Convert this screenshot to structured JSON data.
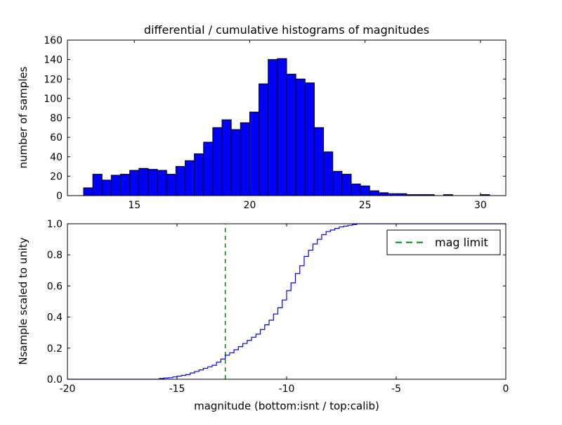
{
  "figure": {
    "background": "#ffffff",
    "frame_color": "#000000"
  },
  "chart_data": [
    {
      "id": "differential-histogram",
      "type": "bar",
      "title": "differential / cumulative histograms of magnitudes",
      "ylabel": "number of samples",
      "bar_color": "#0000ff",
      "bar_edge_color": "#000000",
      "bin_start": 12.8,
      "bin_width": 0.4,
      "counts": [
        8,
        22,
        16,
        21,
        22,
        26,
        28,
        27,
        26,
        22,
        30,
        36,
        43,
        55,
        70,
        78,
        68,
        75,
        86,
        115,
        140,
        141,
        125,
        120,
        116,
        70,
        45,
        25,
        22,
        12,
        10,
        5,
        3,
        2,
        2,
        1,
        1,
        1,
        0,
        1,
        0,
        0,
        0,
        1
      ],
      "xlim": [
        12.1,
        31.1
      ],
      "ylim": [
        0,
        160
      ],
      "xticks": [
        15,
        20,
        25,
        30
      ],
      "yticks": [
        0,
        20,
        40,
        60,
        80,
        100,
        120,
        140,
        160
      ],
      "grid": false
    },
    {
      "id": "cumulative-histogram",
      "type": "line",
      "style": "step",
      "ylabel": "Nsample scaled to unity",
      "xlabel": "magnitude (bottom:isnt / top:calib)",
      "line_color": "#0000ff",
      "x": [
        -16.0,
        -15.8,
        -15.6,
        -15.4,
        -15.2,
        -15.0,
        -14.8,
        -14.6,
        -14.4,
        -14.2,
        -14.0,
        -13.8,
        -13.6,
        -13.4,
        -13.2,
        -13.0,
        -12.8,
        -12.6,
        -12.4,
        -12.2,
        -12.0,
        -11.8,
        -11.6,
        -11.4,
        -11.2,
        -11.0,
        -10.8,
        -10.6,
        -10.4,
        -10.2,
        -10.0,
        -9.8,
        -9.6,
        -9.4,
        -9.2,
        -9.0,
        -8.8,
        -8.6,
        -8.4,
        -8.2,
        -8.0,
        -7.8,
        -7.6,
        -7.4,
        -7.2,
        -7.0,
        -6.8
      ],
      "y": [
        0.0,
        0.005,
        0.008,
        0.01,
        0.015,
        0.02,
        0.025,
        0.03,
        0.04,
        0.05,
        0.06,
        0.07,
        0.08,
        0.09,
        0.11,
        0.13,
        0.155,
        0.17,
        0.19,
        0.21,
        0.23,
        0.25,
        0.27,
        0.29,
        0.32,
        0.35,
        0.38,
        0.42,
        0.46,
        0.51,
        0.57,
        0.62,
        0.68,
        0.73,
        0.79,
        0.83,
        0.87,
        0.9,
        0.93,
        0.95,
        0.96,
        0.97,
        0.98,
        0.985,
        0.99,
        0.995,
        1.0
      ],
      "xlim": [
        -20,
        0
      ],
      "ylim": [
        0.0,
        1.0
      ],
      "xticks": [
        -20,
        -15,
        -10,
        -5,
        0
      ],
      "yticks": [
        0.0,
        0.2,
        0.4,
        0.6,
        0.8,
        1.0
      ],
      "grid": false,
      "mag_limit": {
        "x": -12.8,
        "color": "#008000",
        "label": "mag limit"
      },
      "legend": {
        "label": "mag limit",
        "position": "upper right"
      }
    }
  ]
}
